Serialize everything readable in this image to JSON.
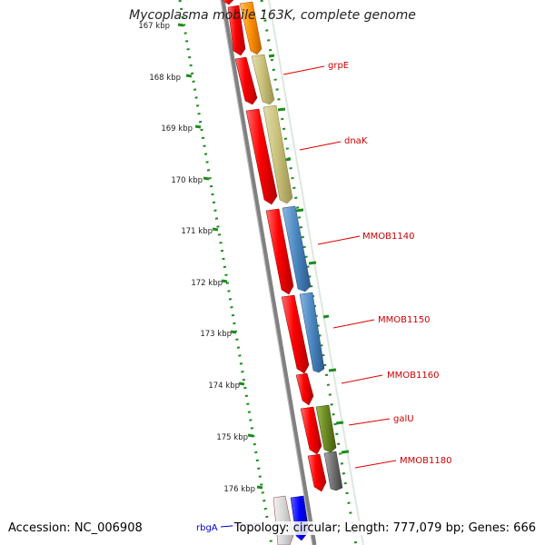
{
  "title": "Mycoplasma mobile 163K, complete genome",
  "footer": {
    "accession": "Accession: NC_006908",
    "topology": "Topology: circular; Length: 777,079 bp; Genes: 666"
  },
  "colors": {
    "backbone": "#808080",
    "gene_strand": "#ff0000",
    "label_text": "#cc0000",
    "label_line": "#dd0000",
    "tick_dots": "#1e8c1e",
    "rbgA_label": "#0000cc",
    "grpE_feature": "#ff9000",
    "dnaK_feature": "#c8c078",
    "MMOB1140_feature": "#4a86c0",
    "galU_feature": "#6a8a20",
    "MMOB1180_feature": "#707070"
  },
  "ruler": {
    "unit": "kbp",
    "ticks": [
      "167 kbp",
      "168 kbp",
      "169 kbp",
      "170 kbp",
      "171 kbp",
      "172 kbp",
      "173 kbp",
      "174 kbp",
      "175 kbp",
      "176 kbp"
    ]
  },
  "gene_labels": [
    "grpE",
    "dnaK",
    "MMOB1140",
    "MMOB1150",
    "MMOB1160",
    "galU",
    "MMOB1180",
    "rbgA"
  ]
}
